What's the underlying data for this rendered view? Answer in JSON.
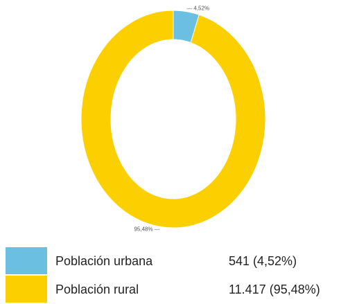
{
  "chart_data": {
    "type": "donut",
    "categories": [
      "Población urbana",
      "Población rural"
    ],
    "values": [
      4.52,
      95.48
    ],
    "value_labels": [
      "4,52%",
      "95,48%"
    ],
    "legend_values": [
      "541 (4,52%)",
      "11.417 (95,48%)"
    ],
    "colors": [
      "#6bbfe0",
      "#fcd000"
    ]
  }
}
